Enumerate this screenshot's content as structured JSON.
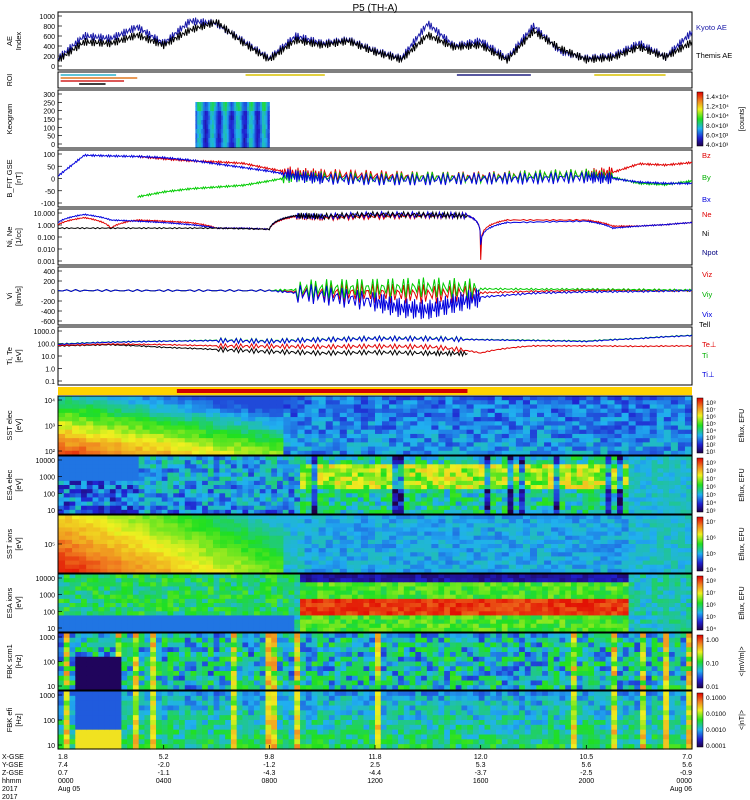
{
  "title": "P5 (TH-A)",
  "year": "2017",
  "colors": {
    "kyoto": "#1a1aa8",
    "themis": "#000000",
    "red": "#e00000",
    "green": "#00cc00",
    "blue": "#0000dd",
    "bar_yellow": "#ffd200",
    "bar_red": "#d00000"
  },
  "chart_data": [
    {
      "type": "line",
      "panel": "ae",
      "ylabel": "AE Index",
      "yticks": [
        "1000",
        "800",
        "600",
        "400",
        "200",
        "0"
      ],
      "ylim": [
        0,
        1000
      ],
      "x_range_hours": [
        0,
        24
      ],
      "series": [
        {
          "name": "Kyoto AE",
          "x": [
            0,
            1,
            2,
            3,
            4,
            5,
            6,
            7,
            8,
            9,
            10,
            11,
            12,
            13,
            14,
            15,
            16,
            17,
            18,
            19,
            20,
            21,
            22,
            23,
            24
          ],
          "values": [
            150,
            600,
            550,
            780,
            450,
            900,
            850,
            500,
            150,
            600,
            450,
            520,
            300,
            150,
            850,
            400,
            500,
            150,
            800,
            300,
            150,
            200,
            450,
            180,
            680
          ]
        },
        {
          "name": "Themis AE",
          "x": [
            0,
            1,
            2,
            3,
            4,
            5,
            6,
            7,
            8,
            9,
            10,
            11,
            12,
            13,
            14,
            15,
            16,
            17,
            18,
            19,
            20,
            21,
            22,
            23,
            24
          ],
          "values": [
            120,
            480,
            450,
            620,
            420,
            720,
            880,
            470,
            130,
            520,
            420,
            500,
            280,
            130,
            620,
            380,
            420,
            120,
            700,
            350,
            130,
            170,
            380,
            180,
            480
          ]
        }
      ]
    },
    {
      "type": "table",
      "panel": "roi",
      "ylabel": "ROI",
      "segments": [
        {
          "from": 0.1,
          "to": 2.2,
          "row": 0,
          "color": "#2ab0c8"
        },
        {
          "from": 0.1,
          "to": 3.0,
          "row": 1,
          "color": "#e07820"
        },
        {
          "from": 0.1,
          "to": 2.5,
          "row": 2,
          "color": "#d02020"
        },
        {
          "from": 0.8,
          "to": 1.8,
          "row": 3,
          "color": "#000000"
        },
        {
          "from": 7.1,
          "to": 10.1,
          "row": 0,
          "color": "#d8c000"
        },
        {
          "from": 15.1,
          "to": 17.9,
          "row": 0,
          "color": "#202080"
        },
        {
          "from": 20.3,
          "to": 23.0,
          "row": 0,
          "color": "#d8c000"
        }
      ]
    },
    {
      "type": "heatmap",
      "panel": "keogram",
      "ylabel": "Keogram",
      "yticks": [
        "300",
        "250",
        "200",
        "150",
        "100",
        "50",
        "0"
      ],
      "colorbar_label": "[counts]",
      "colorbar_ticks": [
        "1.4×10⁴",
        "1.2×10⁴",
        "1.0×10⁴",
        "8.0×10³",
        "6.0×10³",
        "4.0×10³"
      ],
      "x_range_hours": [
        5.2,
        8.0
      ]
    },
    {
      "type": "line",
      "panel": "b",
      "ylabel": "B_FIT GSE [nT]",
      "yticks": [
        "100",
        "50",
        "0",
        "-50",
        "-100"
      ],
      "ylim": [
        -100,
        100
      ],
      "series": [
        {
          "name": "Bz",
          "x": [
            3,
            4,
            5,
            6,
            7,
            8,
            9,
            10,
            12,
            14,
            16,
            18,
            20,
            21,
            22,
            23,
            24
          ],
          "values": [
            90,
            80,
            72,
            68,
            62,
            40,
            20,
            15,
            10,
            5,
            5,
            10,
            15,
            25,
            60,
            55,
            65
          ]
        },
        {
          "name": "By",
          "x": [
            3,
            4,
            5,
            6,
            7,
            8,
            9,
            10,
            12,
            14,
            16,
            18,
            20,
            21,
            22,
            23,
            24
          ],
          "values": [
            -75,
            -55,
            -42,
            -35,
            -28,
            -10,
            10,
            5,
            0,
            5,
            0,
            10,
            15,
            5,
            -20,
            -25,
            -10
          ]
        },
        {
          "name": "Bx",
          "x": [
            0,
            1,
            2,
            3,
            4,
            5,
            6,
            7,
            8,
            9,
            10,
            12,
            14,
            16,
            18,
            20,
            21,
            22,
            23,
            24
          ],
          "values": [
            10,
            95,
            92,
            90,
            85,
            75,
            60,
            45,
            30,
            10,
            0,
            -5,
            -5,
            0,
            0,
            5,
            0,
            -15,
            -20,
            -20
          ]
        }
      ]
    },
    {
      "type": "line",
      "panel": "n",
      "ylabel": "Ni, Ne [1/cc]",
      "yticks": [
        "10.000",
        "1.000",
        "0.100",
        "0.010",
        "0.001"
      ],
      "ylim": [
        0.001,
        30
      ],
      "series": [
        {
          "name": "Ne",
          "x": [
            0,
            1,
            2,
            3,
            4,
            5,
            6,
            7,
            8,
            9,
            10,
            12,
            14,
            15.5,
            16,
            17,
            20,
            21,
            22,
            23,
            24
          ],
          "values": [
            2,
            8,
            1,
            5,
            4,
            3,
            1,
            1,
            0.8,
            10,
            8,
            10,
            12,
            12,
            0.002,
            5,
            5,
            1.5,
            1.5,
            2,
            3
          ]
        },
        {
          "name": "Ni",
          "x": [
            0,
            1,
            2,
            3,
            4,
            5,
            6,
            7,
            8,
            9,
            10,
            12,
            14,
            15.5,
            16,
            17,
            20,
            21,
            22,
            23,
            24
          ],
          "values": [
            3,
            15,
            5,
            4,
            3,
            2,
            1,
            1,
            0.8,
            12,
            10,
            15,
            14,
            12,
            0.04,
            3,
            4,
            1,
            1.5,
            2,
            3
          ]
        },
        {
          "name": "Npot",
          "x": [
            0,
            2,
            4,
            6,
            8,
            9,
            10,
            12,
            14,
            15.5
          ],
          "values": [
            1,
            1,
            1,
            1,
            0.8,
            12,
            10,
            15,
            14,
            12
          ]
        }
      ]
    },
    {
      "type": "line",
      "panel": "v",
      "ylabel": "Vi [km/s]",
      "yticks": [
        "400",
        "200",
        "0",
        "-200",
        "-400",
        "-600"
      ],
      "ylim": [
        -700,
        450
      ],
      "series": [
        {
          "name": "Viz",
          "x": [
            0,
            4,
            8,
            10,
            12,
            14,
            16,
            18,
            20,
            22,
            24
          ],
          "values": [
            0,
            0,
            0,
            -50,
            -50,
            -80,
            -50,
            -20,
            0,
            0,
            0
          ]
        },
        {
          "name": "Viy",
          "x": [
            0,
            4,
            8,
            10,
            12,
            14,
            16,
            18,
            20,
            22,
            24
          ],
          "values": [
            0,
            0,
            0,
            40,
            60,
            80,
            40,
            30,
            30,
            20,
            10
          ]
        },
        {
          "name": "Vix",
          "x": [
            0,
            4,
            8,
            10,
            12,
            13,
            14,
            15,
            16,
            18,
            20,
            22,
            24
          ],
          "values": [
            0,
            0,
            0,
            -100,
            -250,
            -400,
            -450,
            -300,
            -150,
            -60,
            -30,
            -20,
            0
          ]
        }
      ]
    },
    {
      "type": "line",
      "panel": "t",
      "ylabel": "Ti, Te [eV]",
      "yticks": [
        "1000.0",
        "100.0",
        "10.0",
        "1.0",
        "0.1"
      ],
      "ylim": [
        0.1,
        3000
      ],
      "series": [
        {
          "name": "Tell",
          "x": [
            0,
            2,
            4,
            6,
            8,
            10,
            12,
            14,
            15.5
          ],
          "values": [
            120,
            150,
            90,
            60,
            40,
            30,
            35,
            30,
            28
          ]
        },
        {
          "name": "Te⊥",
          "x": [
            0,
            2,
            4,
            6,
            8,
            10,
            12,
            14,
            16,
            18,
            20,
            22,
            24
          ],
          "values": [
            130,
            170,
            150,
            120,
            110,
            100,
            110,
            100,
            30,
            120,
            120,
            110,
            120
          ]
        },
        {
          "name": "Ti",
          "x": [
            0,
            2,
            4,
            6,
            8,
            10,
            12,
            14,
            16,
            18,
            20,
            22,
            24
          ],
          "values": [
            170,
            250,
            300,
            350,
            300,
            400,
            500,
            500,
            400,
            350,
            300,
            500,
            900
          ]
        },
        {
          "name": "Ti⊥",
          "x": [
            0,
            2,
            4,
            6,
            8,
            10,
            12,
            14,
            16,
            18,
            20,
            22,
            24
          ],
          "values": [
            160,
            240,
            290,
            330,
            280,
            380,
            480,
            470,
            380,
            330,
            280,
            480,
            850
          ]
        }
      ]
    },
    {
      "type": "heatmap",
      "panel": "sst_e",
      "ylabel": "SST elec [eV]",
      "yticks": [
        "10⁴",
        "10³",
        "10²"
      ],
      "colorbar_label": "Eflux, EFU",
      "colorbar_ticks": [
        "10⁸",
        "10⁷",
        "10⁶",
        "10⁵",
        "10⁴",
        "10³",
        "10²",
        "10¹"
      ]
    },
    {
      "type": "heatmap",
      "panel": "esa_e",
      "ylabel": "ESA elec [eV]",
      "yticks": [
        "10000",
        "1000",
        "100",
        "10"
      ],
      "colorbar_label": "Eflux, EFU",
      "colorbar_ticks": [
        "10⁹",
        "10⁸",
        "10⁷",
        "10⁶",
        "10⁵",
        "10⁴",
        "10³"
      ]
    },
    {
      "type": "heatmap",
      "panel": "sst_i",
      "ylabel": "SST ions [eV]",
      "yticks": [
        "10⁵"
      ],
      "colorbar_label": "Eflux, EFU",
      "colorbar_ticks": [
        "10⁷",
        "10⁶",
        "10⁵",
        "10⁴"
      ]
    },
    {
      "type": "heatmap",
      "panel": "esa_i",
      "ylabel": "ESA ions [eV]",
      "yticks": [
        "10000",
        "1000",
        "100",
        "10"
      ],
      "colorbar_label": "Eflux, EFU",
      "colorbar_ticks": [
        "10⁸",
        "10⁷",
        "10⁶",
        "10⁵",
        "10⁴"
      ]
    },
    {
      "type": "heatmap",
      "panel": "fbk_scm",
      "ylabel": "FBK scm1 [Hz]",
      "yticks": [
        "1000",
        "100",
        "10"
      ],
      "colorbar_label": "<|mV/m|>",
      "colorbar_ticks": [
        "1.00",
        "0.10",
        "0.01"
      ]
    },
    {
      "type": "heatmap",
      "panel": "fbk_efi",
      "ylabel": "FBK efi [Hz]",
      "yticks": [
        "1000",
        "100",
        "10"
      ],
      "colorbar_label": "<|nT|>",
      "colorbar_ticks": [
        "0.1000",
        "0.0100",
        "0.0010",
        "0.0001"
      ]
    }
  ],
  "x_axis": {
    "row_labels": [
      "X-GSE",
      "Y-GSE",
      "Z-GSE",
      "hhmm",
      "2017"
    ],
    "ticks": [
      {
        "hour": 0,
        "x": "1.8",
        "y": "7.4",
        "z": "0.7",
        "t": "0000",
        "d": "Aug 05"
      },
      {
        "hour": 4,
        "x": "5.2",
        "y": "-2.0",
        "z": "-1.1",
        "t": "0400",
        "d": ""
      },
      {
        "hour": 8,
        "x": "9.8",
        "y": "-1.2",
        "z": "-4.3",
        "t": "0800",
        "d": ""
      },
      {
        "hour": 12,
        "x": "11.8",
        "y": "2.5",
        "z": "-4.4",
        "t": "1200",
        "d": ""
      },
      {
        "hour": 16,
        "x": "12.0",
        "y": "5.3",
        "z": "-3.7",
        "t": "1600",
        "d": ""
      },
      {
        "hour": 20,
        "x": "10.5",
        "y": "5.6",
        "z": "-2.5",
        "t": "2000",
        "d": ""
      },
      {
        "hour": 24,
        "x": "7.0",
        "y": "5.6",
        "z": "-0.9",
        "t": "0000",
        "d": "Aug 06"
      }
    ]
  },
  "mode_bar": {
    "yellow_segments": [
      [
        0,
        24
      ]
    ],
    "red_segments": [
      [
        4.5,
        15.5
      ]
    ]
  }
}
